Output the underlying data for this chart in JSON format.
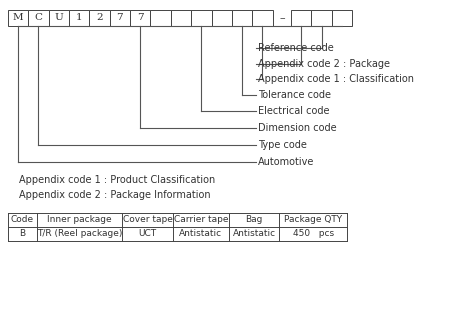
{
  "bg_color": "#ffffff",
  "box_chars": [
    "M",
    "C",
    "U",
    "1",
    "2",
    "7",
    "7",
    "",
    "",
    "",
    "",
    "",
    "",
    "",
    ""
  ],
  "labels": [
    "Reference code",
    "Appendix code 2 : Package",
    "Appendix code 1 : Classification",
    "Tolerance code",
    "Electrical code",
    "Dimension code",
    "Type code",
    "Automotive"
  ],
  "appendix_lines": [
    "Appendix code 1 : Product Classification",
    "Appendix code 2 : Package Information"
  ],
  "table_headers": [
    "Code",
    "Inner package",
    "Cover tape",
    "Carrier tape",
    "Bag",
    "Package QTY"
  ],
  "table_row": [
    "B",
    "T/R (Reel package)",
    "UCT",
    "Antistatic",
    "Antistatic",
    "450   pcs"
  ],
  "font_size": 7.0,
  "box_color": "#444444",
  "line_color": "#555555",
  "text_color": "#333333"
}
